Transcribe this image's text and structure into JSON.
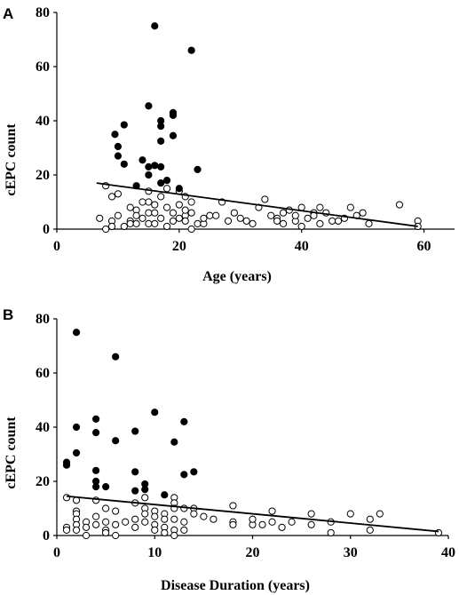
{
  "chart_data": [
    {
      "type": "scatter",
      "panel_label": "A",
      "xlabel": "Age (years)",
      "ylabel": "cEPC count",
      "xlim": [
        0,
        65
      ],
      "ylim": [
        0,
        80
      ],
      "xticks": [
        0,
        20,
        40,
        60
      ],
      "yticks": [
        0,
        20,
        40,
        60,
        80
      ],
      "series": [
        {
          "marker": "filled",
          "color": "#000000",
          "points": [
            [
              16,
              75
            ],
            [
              22,
              66
            ],
            [
              15,
              45.5
            ],
            [
              19,
              43
            ],
            [
              19,
              42
            ],
            [
              17,
              40
            ],
            [
              11,
              38.5
            ],
            [
              17,
              38
            ],
            [
              9.5,
              35
            ],
            [
              19,
              34.5
            ],
            [
              17,
              32.5
            ],
            [
              10,
              30.5
            ],
            [
              14,
              25.5
            ],
            [
              16,
              23.5
            ],
            [
              15,
              23
            ],
            [
              17,
              23
            ],
            [
              10,
              27
            ],
            [
              11,
              24
            ],
            [
              23,
              22
            ],
            [
              13,
              16
            ],
            [
              20,
              15
            ],
            [
              15,
              20
            ],
            [
              18,
              18
            ],
            [
              17,
              17
            ]
          ]
        },
        {
          "marker": "open",
          "color": "#000000",
          "points": [
            [
              8,
              16
            ],
            [
              9,
              12
            ],
            [
              7,
              4
            ],
            [
              10,
              5
            ],
            [
              12,
              8
            ],
            [
              13,
              7
            ],
            [
              15,
              10
            ],
            [
              16,
              9
            ],
            [
              18,
              8
            ],
            [
              19,
              6
            ],
            [
              20,
              4
            ],
            [
              21,
              12
            ],
            [
              22,
              10
            ],
            [
              22,
              6
            ],
            [
              25,
              5
            ],
            [
              27,
              10
            ],
            [
              26,
              5
            ],
            [
              29,
              6
            ],
            [
              31,
              3
            ],
            [
              33,
              8
            ],
            [
              34,
              11
            ],
            [
              35,
              5
            ],
            [
              36,
              4
            ],
            [
              37,
              6
            ],
            [
              38,
              7
            ],
            [
              39,
              3
            ],
            [
              40,
              8
            ],
            [
              41,
              4
            ],
            [
              42,
              6
            ],
            [
              43,
              8
            ],
            [
              44,
              6
            ],
            [
              45,
              3
            ],
            [
              47,
              4
            ],
            [
              48,
              8
            ],
            [
              49,
              5
            ],
            [
              51,
              2
            ],
            [
              56,
              9
            ],
            [
              59,
              3
            ],
            [
              59,
              1
            ],
            [
              14,
              4
            ],
            [
              15,
              2
            ],
            [
              16,
              2
            ],
            [
              17,
              4
            ],
            [
              18,
              1
            ],
            [
              19,
              3
            ],
            [
              20,
              9
            ],
            [
              21,
              5
            ],
            [
              12,
              3
            ],
            [
              11,
              1
            ],
            [
              13,
              5
            ],
            [
              17,
              12
            ],
            [
              20,
              14
            ],
            [
              21,
              7
            ],
            [
              23,
              2
            ],
            [
              24,
              2
            ],
            [
              28,
              3
            ],
            [
              32,
              2
            ],
            [
              36,
              3
            ],
            [
              39,
              5
            ],
            [
              42,
              5
            ],
            [
              43,
              2
            ],
            [
              9,
              3
            ],
            [
              10,
              13
            ],
            [
              15,
              14
            ],
            [
              18,
              15
            ],
            [
              21,
              3
            ],
            [
              15,
              6
            ],
            [
              16,
              6
            ],
            [
              12,
              2
            ],
            [
              13,
              2
            ],
            [
              14,
              10
            ],
            [
              8,
              0
            ],
            [
              9,
              1
            ],
            [
              22,
              0
            ],
            [
              24,
              4
            ],
            [
              30,
              4
            ],
            [
              37,
              2
            ],
            [
              40,
              1
            ],
            [
              46,
              3
            ],
            [
              50,
              6
            ]
          ]
        }
      ],
      "trendline": [
        [
          6.5,
          17
        ],
        [
          59,
          1
        ]
      ]
    },
    {
      "type": "scatter",
      "panel_label": "B",
      "xlabel": "Disease Duration (years)",
      "ylabel": "cEPC count",
      "xlim": [
        0,
        40
      ],
      "ylim": [
        0,
        80
      ],
      "xticks": [
        0,
        10,
        20,
        30,
        40
      ],
      "yticks": [
        0,
        20,
        40,
        60,
        80
      ],
      "series": [
        {
          "marker": "filled",
          "color": "#000000",
          "points": [
            [
              2,
              75
            ],
            [
              6,
              66
            ],
            [
              10,
              45.5
            ],
            [
              4,
              43
            ],
            [
              13,
              42
            ],
            [
              2,
              40
            ],
            [
              4,
              38
            ],
            [
              8,
              38.5
            ],
            [
              6,
              35
            ],
            [
              12,
              34.5
            ],
            [
              2,
              30.5
            ],
            [
              1,
              27
            ],
            [
              1,
              26
            ],
            [
              4,
              24
            ],
            [
              8,
              23.5
            ],
            [
              14,
              23.5
            ],
            [
              13,
              22.5
            ],
            [
              4,
              20
            ],
            [
              9,
              19
            ],
            [
              9,
              17
            ],
            [
              4,
              18
            ],
            [
              5,
              18
            ],
            [
              8,
              16.5
            ],
            [
              11,
              15
            ]
          ]
        },
        {
          "marker": "open",
          "color": "#000000",
          "points": [
            [
              1,
              14
            ],
            [
              1,
              3
            ],
            [
              1,
              2
            ],
            [
              2,
              13
            ],
            [
              2,
              9
            ],
            [
              2,
              8
            ],
            [
              2,
              6
            ],
            [
              2,
              4
            ],
            [
              2,
              2
            ],
            [
              3,
              0
            ],
            [
              3,
              5
            ],
            [
              4,
              13
            ],
            [
              4,
              7
            ],
            [
              4,
              4
            ],
            [
              5,
              10
            ],
            [
              5,
              5
            ],
            [
              5,
              2
            ],
            [
              5,
              1
            ],
            [
              6,
              9
            ],
            [
              6,
              4
            ],
            [
              6,
              0
            ],
            [
              8,
              12
            ],
            [
              8,
              6
            ],
            [
              8,
              3
            ],
            [
              9,
              14
            ],
            [
              9,
              10
            ],
            [
              9,
              8
            ],
            [
              9,
              5
            ],
            [
              10,
              9
            ],
            [
              10,
              7
            ],
            [
              10,
              4
            ],
            [
              10,
              2
            ],
            [
              11,
              8
            ],
            [
              11,
              6
            ],
            [
              11,
              3
            ],
            [
              11,
              1
            ],
            [
              12,
              14
            ],
            [
              12,
              12
            ],
            [
              12,
              10
            ],
            [
              12,
              6
            ],
            [
              12,
              2
            ],
            [
              12,
              0
            ],
            [
              13,
              10
            ],
            [
              13,
              5
            ],
            [
              13,
              2
            ],
            [
              14,
              10
            ],
            [
              14,
              8
            ],
            [
              18,
              11
            ],
            [
              18,
              5
            ],
            [
              18,
              4
            ],
            [
              20,
              4
            ],
            [
              21,
              4
            ],
            [
              22,
              9
            ],
            [
              22,
              5
            ],
            [
              23,
              3
            ],
            [
              26,
              8
            ],
            [
              26,
              4
            ],
            [
              28,
              5
            ],
            [
              28,
              1
            ],
            [
              30,
              8
            ],
            [
              32,
              6
            ],
            [
              32,
              2
            ],
            [
              33,
              8
            ],
            [
              39,
              1
            ],
            [
              7,
              5
            ],
            [
              3,
              3
            ],
            [
              15,
              7
            ],
            [
              16,
              6
            ],
            [
              20,
              6
            ],
            [
              24,
              5
            ]
          ]
        }
      ],
      "trendline": [
        [
          1,
          14.5
        ],
        [
          39,
          1.5
        ]
      ]
    }
  ]
}
